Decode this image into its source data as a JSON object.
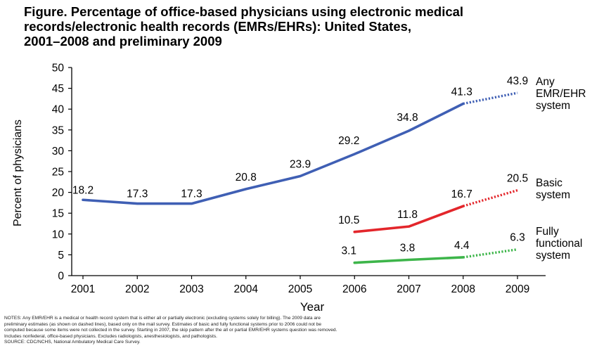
{
  "title_lines": [
    "Figure. Percentage of office-based physicians using electronic medical",
    "records/electronic health records (EMRs/EHRs): United States,",
    "2001–2008 and preliminary 2009"
  ],
  "notes_lines": [
    "NOTES: Any EMR/EHR is a medical or health record system that is either all or partially electronic (excluding systems solely for billing). The 2009 data are",
    "preliminary estimates (as shown on dashed lines), based only on the mail survey. Estimates of basic and fully functional systems prior to 2006 could not be",
    "computed because some items were not collected in the survey. Starting in 2007, the skip pattern after the all or partial EMR/EHR systems question was removed.",
    "Includes nonfederal, office-based physicians. Excludes radiologists, anesthesiologists, and pathologists.",
    "SOURCE: CDC/NCHS, National Ambulatory Medical Care Survey."
  ],
  "chart_data": {
    "type": "line",
    "title": "Figure. Percentage of office-based physicians using electronic medical records/electronic health records (EMRs/EHRs): United States, 2001–2008 and preliminary 2009",
    "xlabel": "Year",
    "ylabel": "Percent of physicians",
    "x_ticks": [
      "2001",
      "2002",
      "2003",
      "2004",
      "2005",
      "2006",
      "2007",
      "2008",
      "2009"
    ],
    "ylim": [
      0,
      50
    ],
    "y_ticks": [
      0,
      5,
      10,
      15,
      20,
      25,
      30,
      35,
      40,
      45,
      50
    ],
    "grid": false,
    "series": [
      {
        "name_lines": [
          "Any",
          "EMR/EHR",
          "system"
        ],
        "color": "#3f5fb4",
        "points": [
          {
            "x": "2001",
            "y": 18.2,
            "label": "18.2"
          },
          {
            "x": "2002",
            "y": 17.3,
            "label": "17.3"
          },
          {
            "x": "2003",
            "y": 17.3,
            "label": "17.3"
          },
          {
            "x": "2004",
            "y": 20.8,
            "label": "20.8"
          },
          {
            "x": "2005",
            "y": 23.9,
            "label": "23.9"
          },
          {
            "x": "2006",
            "y": 29.2,
            "label": "29.2"
          },
          {
            "x": "2007",
            "y": 34.8,
            "label": "34.8"
          },
          {
            "x": "2008",
            "y": 41.3,
            "label": "41.3"
          },
          {
            "x": "2009",
            "y": 43.9,
            "label": "43.9",
            "preliminary": true
          }
        ]
      },
      {
        "name_lines": [
          "Basic",
          "system"
        ],
        "color": "#e3262b",
        "points": [
          {
            "x": "2006",
            "y": 10.5,
            "label": "10.5"
          },
          {
            "x": "2007",
            "y": 11.8,
            "label": "11.8"
          },
          {
            "x": "2008",
            "y": 16.7,
            "label": "16.7"
          },
          {
            "x": "2009",
            "y": 20.5,
            "label": "20.5",
            "preliminary": true
          }
        ]
      },
      {
        "name_lines": [
          "Fully",
          "functional",
          "system"
        ],
        "color": "#3db54a",
        "points": [
          {
            "x": "2006",
            "y": 3.1,
            "label": "3.1"
          },
          {
            "x": "2007",
            "y": 3.8,
            "label": "3.8"
          },
          {
            "x": "2008",
            "y": 4.4,
            "label": "4.4"
          },
          {
            "x": "2009",
            "y": 6.3,
            "label": "6.3",
            "preliminary": true
          }
        ]
      }
    ],
    "preliminary_style": "dotted"
  }
}
